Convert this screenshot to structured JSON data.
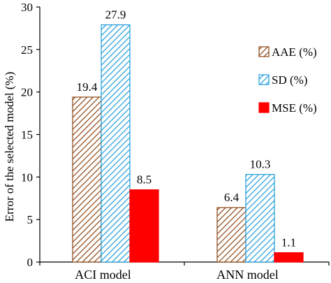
{
  "chart_data": {
    "type": "bar",
    "categories": [
      "ACI model",
      "ANN model"
    ],
    "series": [
      {
        "name": "AAE (%)",
        "values": [
          19.4,
          6.4
        ],
        "color": "#8B4513",
        "fill": "hatch-brown"
      },
      {
        "name": "SD (%)",
        "values": [
          27.9,
          10.3
        ],
        "color": "#1E9BD7",
        "fill": "hatch-blue"
      },
      {
        "name": "MSE (%)",
        "values": [
          8.5,
          1.1
        ],
        "color": "#FF0000",
        "fill": "solid-red"
      }
    ],
    "data_labels": [
      [
        "19.4",
        "6.4"
      ],
      [
        "27.9",
        "10.3"
      ],
      [
        "8.5",
        "1.1"
      ]
    ],
    "ylabel": "Error of the selected model (%)",
    "xlabel": "",
    "ylim": [
      0,
      30
    ],
    "yticks": [
      0,
      5,
      10,
      15,
      20,
      25,
      30
    ],
    "ytick_labels": [
      "0",
      "5",
      "10",
      "15",
      "20",
      "25",
      "30"
    ],
    "grid": false,
    "legend_position": "right"
  }
}
